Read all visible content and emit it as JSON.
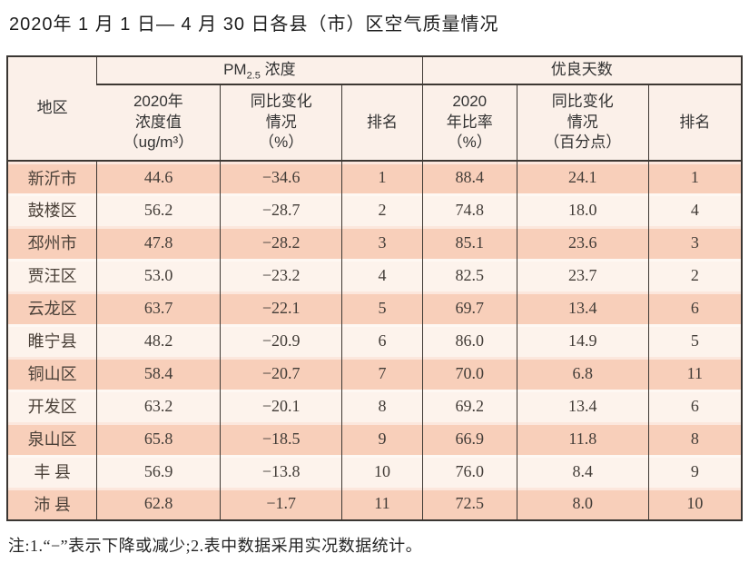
{
  "page": {
    "title": "2020年 1 月 1 日— 4 月 30 日各县（市）区空气质量情况",
    "note": "注:1.“−”表示下降或减少;2.表中数据采用实况数据统计。"
  },
  "colors": {
    "row_pink": "#f8cfba",
    "row_cream": "#fdf3ec",
    "header_bg": "#fbf0e9",
    "border": "#3d3833",
    "text": "#423c37"
  },
  "table": {
    "corner_header": "地区",
    "group_pm": {
      "prefix": "PM",
      "sub": "2.5",
      "suffix": " 浓度"
    },
    "group_good_days": "优良天数",
    "sub_headers": [
      "2020年\n浓度值\n（ug/m³）",
      "同比变化\n情况\n（%）",
      "排名",
      "2020\n年比率\n（%）",
      "同比变化\n情况\n（百分点）",
      "排名"
    ],
    "rows": [
      [
        "新沂市",
        "44.6",
        "−34.6",
        "1",
        "88.4",
        "24.1",
        "1"
      ],
      [
        "鼓楼区",
        "56.2",
        "−28.7",
        "2",
        "74.8",
        "18.0",
        "4"
      ],
      [
        "邳州市",
        "47.8",
        "−28.2",
        "3",
        "85.1",
        "23.6",
        "3"
      ],
      [
        "贾汪区",
        "53.0",
        "−23.2",
        "4",
        "82.5",
        "23.7",
        "2"
      ],
      [
        "云龙区",
        "63.7",
        "−22.1",
        "5",
        "69.7",
        "13.4",
        "6"
      ],
      [
        "睢宁县",
        "48.2",
        "−20.9",
        "6",
        "86.0",
        "14.9",
        "5"
      ],
      [
        "铜山区",
        "58.4",
        "−20.7",
        "7",
        "70.0",
        "6.8",
        "11"
      ],
      [
        "开发区",
        "63.2",
        "−20.1",
        "8",
        "69.2",
        "13.4",
        "6"
      ],
      [
        "泉山区",
        "65.8",
        "−18.5",
        "9",
        "66.9",
        "11.8",
        "8"
      ],
      [
        "丰 县",
        "56.9",
        "−13.8",
        "10",
        "76.0",
        "8.4",
        "9"
      ],
      [
        "沛 县",
        "62.8",
        "−1.7",
        "11",
        "72.5",
        "8.0",
        "10"
      ]
    ]
  },
  "chart_data": {
    "type": "table",
    "title": "2020年1月1日—4月30日各县（市）区空气质量情况",
    "columns": [
      "地区",
      "PM2.5浓度 2020年浓度值（ug/m³）",
      "PM2.5浓度 同比变化情况（%）",
      "PM2.5浓度 排名",
      "优良天数 2020年比率（%）",
      "优良天数 同比变化情况（百分点）",
      "优良天数 排名"
    ],
    "rows": [
      [
        "新沂市",
        44.6,
        -34.6,
        1,
        88.4,
        24.1,
        1
      ],
      [
        "鼓楼区",
        56.2,
        -28.7,
        2,
        74.8,
        18.0,
        4
      ],
      [
        "邳州市",
        47.8,
        -28.2,
        3,
        85.1,
        23.6,
        3
      ],
      [
        "贾汪区",
        53.0,
        -23.2,
        4,
        82.5,
        23.7,
        2
      ],
      [
        "云龙区",
        63.7,
        -22.1,
        5,
        69.7,
        13.4,
        6
      ],
      [
        "睢宁县",
        48.2,
        -20.9,
        6,
        86.0,
        14.9,
        5
      ],
      [
        "铜山区",
        58.4,
        -20.7,
        7,
        70.0,
        6.8,
        11
      ],
      [
        "开发区",
        63.2,
        -20.1,
        8,
        69.2,
        13.4,
        6
      ],
      [
        "泉山区",
        65.8,
        -18.5,
        9,
        66.9,
        11.8,
        8
      ],
      [
        "丰县",
        56.9,
        -13.8,
        10,
        76.0,
        8.4,
        9
      ],
      [
        "沛县",
        62.8,
        -1.7,
        11,
        72.5,
        8.0,
        10
      ]
    ],
    "footnote": "注:1.“−”表示下降或减少;2.表中数据采用实况数据统计。"
  }
}
